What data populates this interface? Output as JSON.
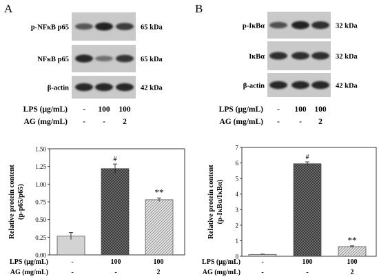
{
  "panels": [
    {
      "letter": "A",
      "blot": {
        "rows": [
          {
            "label": "p-NFκB p65",
            "kda": "65 kDa",
            "intensities": [
              0.55,
              0.95,
              0.75
            ]
          },
          {
            "label": "NFκB p65",
            "kda": "65 kDa",
            "intensities": [
              0.9,
              0.35,
              0.8
            ]
          },
          {
            "label": "β-actin",
            "kda": "42 kDa",
            "intensities": [
              0.9,
              0.9,
              0.9
            ]
          }
        ],
        "conditions": [
          {
            "label": "LPS (μg/mL)",
            "values": [
              "-",
              "100",
              "100"
            ]
          },
          {
            "label": "AG (mg/mL)",
            "values": [
              "-",
              "-",
              "2"
            ]
          }
        ]
      }
    },
    {
      "letter": "B",
      "blot": {
        "rows": [
          {
            "label": "p-IκBα",
            "kda": "32 kDa",
            "intensities": [
              0.6,
              0.95,
              0.85
            ]
          },
          {
            "label": "IκBα",
            "kda": "32 kDa",
            "intensities": [
              0.85,
              0.85,
              0.85
            ]
          },
          {
            "label": "β-actin",
            "kda": "42 kDa",
            "intensities": [
              0.9,
              0.9,
              0.9
            ]
          }
        ],
        "conditions": [
          {
            "label": "LPS (μg/mL)",
            "values": [
              "-",
              "100",
              "100"
            ]
          },
          {
            "label": "AG (mg/mL)",
            "values": [
              "-",
              "-",
              "2"
            ]
          }
        ]
      }
    }
  ],
  "chart_data": [
    {
      "type": "bar",
      "ylabel_line1": "Relative protein content",
      "ylabel_line2": "(p-p65/p65)",
      "ylim": [
        0,
        1.5
      ],
      "yticks": [
        "0.00",
        "0.25",
        "0.50",
        "0.75",
        "1.00",
        "1.25",
        "1.50"
      ],
      "values": [
        0.265,
        1.22,
        0.78
      ],
      "errors": [
        0.05,
        0.065,
        0.025
      ],
      "annotations": [
        "",
        "#",
        "**"
      ],
      "conditions": [
        {
          "label": "LPS (μg/mL)",
          "values": [
            "-",
            "100",
            "100"
          ]
        },
        {
          "label": "AG (mg/mL)",
          "values": [
            "-",
            "-",
            "2"
          ]
        }
      ],
      "patterns": [
        "solid-light-grey",
        "dark-crosshatch",
        "light-diagonal-hatch"
      ]
    },
    {
      "type": "bar",
      "ylabel_line1": "Relative protein content",
      "ylabel_line2": "(p-IκBα/IκBα)",
      "ylim": [
        0,
        7
      ],
      "yticks": [
        "0",
        "1",
        "2",
        "3",
        "4",
        "5",
        "6",
        "7"
      ],
      "values": [
        0.12,
        5.95,
        0.62
      ],
      "errors": [
        0.02,
        0.12,
        0.05
      ],
      "annotations": [
        "",
        "#",
        "**"
      ],
      "conditions": [
        {
          "label": "LPS (μg/mL)",
          "values": [
            "-",
            "100",
            "100"
          ]
        },
        {
          "label": "AG (mg/mL)",
          "values": [
            "-",
            "-",
            "2"
          ]
        }
      ],
      "patterns": [
        "solid-light-grey",
        "dark-crosshatch",
        "light-diagonal-hatch"
      ]
    }
  ],
  "colors": {
    "bar_light": "#d3d3d3",
    "bar_dark": "#3a3a3a",
    "bar_hatch": "#cfcfcf",
    "blot_bg": "#c9c9c9",
    "band": "#1a1a1a"
  }
}
